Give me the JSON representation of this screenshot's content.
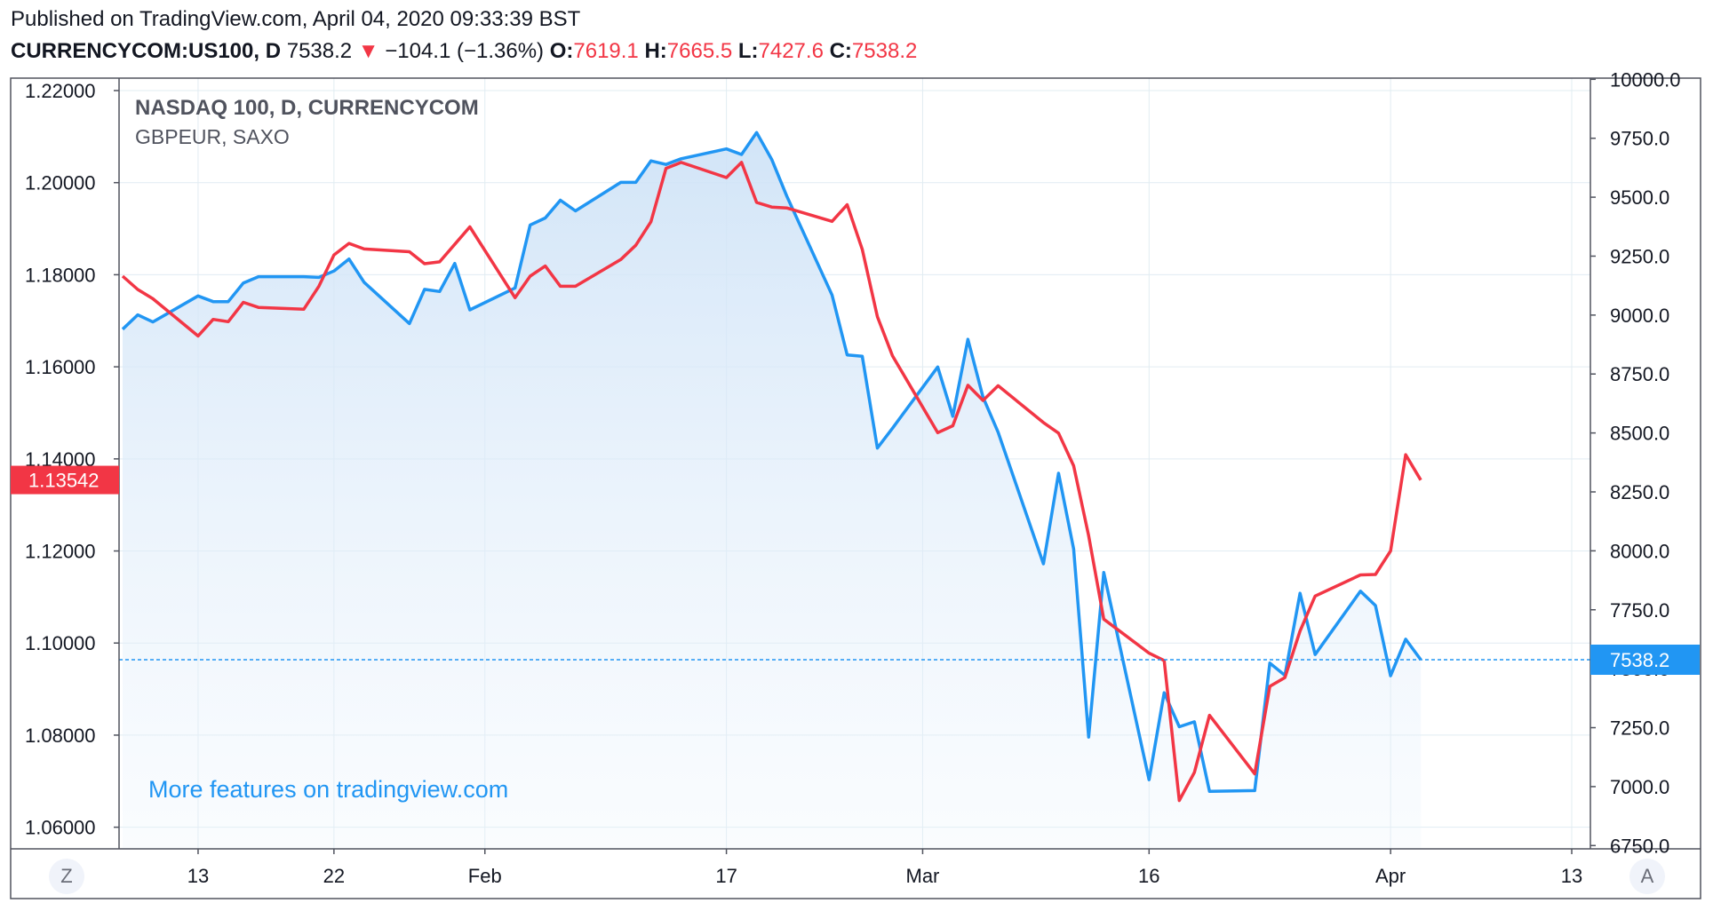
{
  "header": {
    "published": "Published on TradingView.com, April 04, 2020 09:33:39 BST",
    "symbol": "CURRENCYCOM:US100, D",
    "last": "7538.2",
    "change_arrow": "▼",
    "change": "−104.1 (−1.36%)",
    "o_label": "O:",
    "o_value": "7619.1",
    "h_label": "H:",
    "h_value": "7665.5",
    "l_label": "L:",
    "l_value": "7427.6",
    "c_label": "C:",
    "c_value": "7538.2"
  },
  "legend": {
    "main": "NASDAQ 100, D, CURRENCYCOM",
    "compare": "GBPEUR, SAXO"
  },
  "watermark": "More features on tradingview.com",
  "buttons": {
    "left": "Z",
    "right": "A"
  },
  "colors": {
    "nasdaq": "#2196f3",
    "gbpeur": "#f23645",
    "area_top": "#cfe3f7",
    "grid": "#e1ecf2",
    "axis_text": "#131722"
  },
  "chart_data": {
    "type": "line",
    "x_ticks": [
      {
        "label": "13",
        "date": "2020-01-13"
      },
      {
        "label": "22",
        "date": "2020-01-22"
      },
      {
        "label": "Feb",
        "date": "2020-02-01"
      },
      {
        "label": "17",
        "date": "2020-02-17"
      },
      {
        "label": "Mar",
        "date": "2020-03-01"
      },
      {
        "label": "16",
        "date": "2020-03-16"
      },
      {
        "label": "Apr",
        "date": "2020-04-01"
      },
      {
        "label": "13",
        "date": "2020-04-13"
      }
    ],
    "x_range": [
      "2020-01-08",
      "2020-04-14"
    ],
    "left_axis": {
      "ticks": [
        "1.22000",
        "1.20000",
        "1.18000",
        "1.16000",
        "1.14000",
        "1.12000",
        "1.10000",
        "1.08000",
        "1.06000"
      ],
      "range": [
        1.0553,
        1.2227
      ],
      "last_value_label": "1.13542",
      "last_value": 1.13542
    },
    "right_axis": {
      "ticks": [
        "10000.0",
        "9750.0",
        "9500.0",
        "9250.0",
        "9000.0",
        "8750.0",
        "8500.0",
        "8250.0",
        "8000.0",
        "7750.0",
        "7500.0",
        "7250.0",
        "7000.0",
        "6750.0"
      ],
      "range": [
        6736,
        10005
      ],
      "last_value_label": "7538.2",
      "last_value": 7538.2
    },
    "series": [
      {
        "name": "NASDAQ 100, D, CURRENCYCOM",
        "axis": "right",
        "style": "area",
        "points": [
          [
            "2020-01-08",
            8940
          ],
          [
            "2020-01-09",
            9001
          ],
          [
            "2020-01-10",
            8971
          ],
          [
            "2020-01-13",
            9081
          ],
          [
            "2020-01-14",
            9057
          ],
          [
            "2020-01-15",
            9057
          ],
          [
            "2020-01-16",
            9136
          ],
          [
            "2020-01-17",
            9163
          ],
          [
            "2020-01-20",
            9163
          ],
          [
            "2020-01-21",
            9160
          ],
          [
            "2020-01-22",
            9187
          ],
          [
            "2020-01-23",
            9238
          ],
          [
            "2020-01-24",
            9139
          ],
          [
            "2020-01-27",
            8964
          ],
          [
            "2020-01-28",
            9109
          ],
          [
            "2020-01-29",
            9100
          ],
          [
            "2020-01-30",
            9219
          ],
          [
            "2020-01-31",
            9022
          ],
          [
            "2020-02-03",
            9115
          ],
          [
            "2020-02-04",
            9382
          ],
          [
            "2020-02-05",
            9412
          ],
          [
            "2020-02-06",
            9487
          ],
          [
            "2020-02-07",
            9442
          ],
          [
            "2020-02-10",
            9563
          ],
          [
            "2020-02-11",
            9563
          ],
          [
            "2020-02-12",
            9654
          ],
          [
            "2020-02-13",
            9639
          ],
          [
            "2020-02-14",
            9663
          ],
          [
            "2020-02-17",
            9705
          ],
          [
            "2020-02-18",
            9681
          ],
          [
            "2020-02-19",
            9774
          ],
          [
            "2020-02-20",
            9660
          ],
          [
            "2020-02-21",
            9505
          ],
          [
            "2020-02-24",
            9085
          ],
          [
            "2020-02-25",
            8831
          ],
          [
            "2020-02-26",
            8825
          ],
          [
            "2020-02-27",
            8436
          ],
          [
            "2020-02-28",
            8520
          ],
          [
            "2020-03-02",
            8780
          ],
          [
            "2020-03-03",
            8571
          ],
          [
            "2020-03-04",
            8897
          ],
          [
            "2020-03-05",
            8652
          ],
          [
            "2020-03-06",
            8503
          ],
          [
            "2020-03-09",
            7945
          ],
          [
            "2020-03-10",
            8329
          ],
          [
            "2020-03-11",
            8008
          ],
          [
            "2020-03-12",
            7210
          ],
          [
            "2020-03-13",
            7908
          ],
          [
            "2020-03-16",
            7029
          ],
          [
            "2020-03-17",
            7398
          ],
          [
            "2020-03-18",
            7254
          ],
          [
            "2020-03-19",
            7275
          ],
          [
            "2020-03-20",
            6980
          ],
          [
            "2020-03-23",
            6983
          ],
          [
            "2020-03-24",
            7524
          ],
          [
            "2020-03-25",
            7472
          ],
          [
            "2020-03-26",
            7820
          ],
          [
            "2020-03-27",
            7560
          ],
          [
            "2020-03-30",
            7829
          ],
          [
            "2020-03-31",
            7768
          ],
          [
            "2020-04-01",
            7470
          ],
          [
            "2020-04-02",
            7625
          ],
          [
            "2020-04-03",
            7538.2
          ]
        ]
      },
      {
        "name": "GBPEUR, SAXO",
        "axis": "left",
        "style": "line",
        "points": [
          [
            "2020-01-08",
            1.1797
          ],
          [
            "2020-01-09",
            1.1768
          ],
          [
            "2020-01-10",
            1.1748
          ],
          [
            "2020-01-13",
            1.1667
          ],
          [
            "2020-01-14",
            1.1703
          ],
          [
            "2020-01-15",
            1.1698
          ],
          [
            "2020-01-16",
            1.174
          ],
          [
            "2020-01-17",
            1.1729
          ],
          [
            "2020-01-20",
            1.1725
          ],
          [
            "2020-01-21",
            1.1775
          ],
          [
            "2020-01-22",
            1.1843
          ],
          [
            "2020-01-23",
            1.1868
          ],
          [
            "2020-01-24",
            1.1856
          ],
          [
            "2020-01-27",
            1.185
          ],
          [
            "2020-01-28",
            1.1824
          ],
          [
            "2020-01-29",
            1.1828
          ],
          [
            "2020-01-30",
            1.1866
          ],
          [
            "2020-01-31",
            1.1904
          ],
          [
            "2020-02-03",
            1.175
          ],
          [
            "2020-02-04",
            1.1797
          ],
          [
            "2020-02-05",
            1.1819
          ],
          [
            "2020-02-06",
            1.1775
          ],
          [
            "2020-02-07",
            1.1775
          ],
          [
            "2020-02-10",
            1.1833
          ],
          [
            "2020-02-11",
            1.1864
          ],
          [
            "2020-02-12",
            1.1915
          ],
          [
            "2020-02-13",
            1.2031
          ],
          [
            "2020-02-14",
            1.2044
          ],
          [
            "2020-02-17",
            1.2011
          ],
          [
            "2020-02-18",
            1.2044
          ],
          [
            "2020-02-19",
            1.1957
          ],
          [
            "2020-02-20",
            1.1947
          ],
          [
            "2020-02-21",
            1.1945
          ],
          [
            "2020-02-24",
            1.1916
          ],
          [
            "2020-02-25",
            1.1952
          ],
          [
            "2020-02-26",
            1.1855
          ],
          [
            "2020-02-27",
            1.1709
          ],
          [
            "2020-02-28",
            1.1624
          ],
          [
            "2020-03-02",
            1.1457
          ],
          [
            "2020-03-03",
            1.1472
          ],
          [
            "2020-03-04",
            1.156
          ],
          [
            "2020-03-05",
            1.1527
          ],
          [
            "2020-03-06",
            1.1559
          ],
          [
            "2020-03-09",
            1.1479
          ],
          [
            "2020-03-10",
            1.1456
          ],
          [
            "2020-03-11",
            1.1385
          ],
          [
            "2020-03-12",
            1.1233
          ],
          [
            "2020-03-13",
            1.1052
          ],
          [
            "2020-03-16",
            1.0978
          ],
          [
            "2020-03-17",
            1.0962
          ],
          [
            "2020-03-18",
            1.0658
          ],
          [
            "2020-03-19",
            1.0719
          ],
          [
            "2020-03-20",
            1.0843
          ],
          [
            "2020-03-23",
            1.0716
          ],
          [
            "2020-03-24",
            1.0906
          ],
          [
            "2020-03-25",
            1.0925
          ],
          [
            "2020-03-26",
            1.1026
          ],
          [
            "2020-03-27",
            1.1102
          ],
          [
            "2020-03-30",
            1.1148
          ],
          [
            "2020-03-31",
            1.1149
          ],
          [
            "2020-04-01",
            1.12
          ],
          [
            "2020-04-02",
            1.1409
          ],
          [
            "2020-04-03",
            1.1354
          ]
        ]
      }
    ]
  }
}
